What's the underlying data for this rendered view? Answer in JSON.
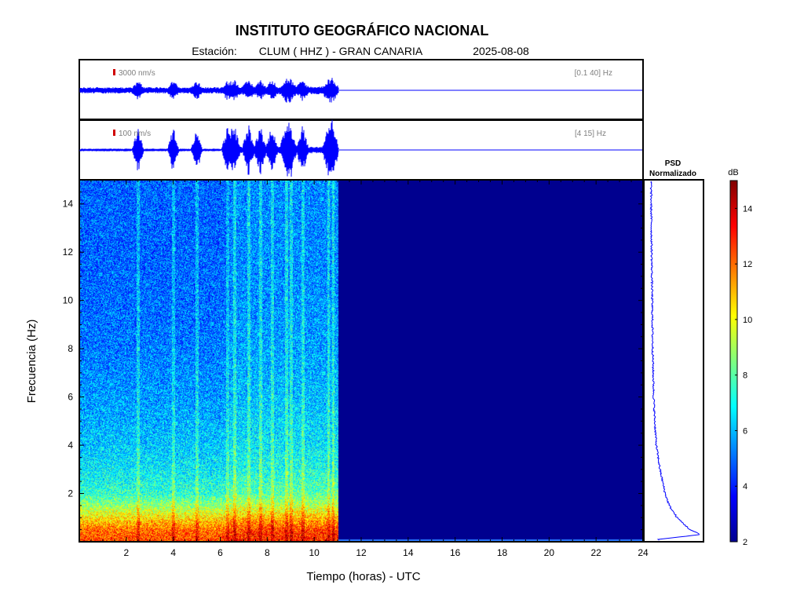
{
  "header": {
    "title": "INSTITUTO GEOGRÁFICO NACIONAL",
    "station_label": "Estación:",
    "station": "CLUM ( HHZ ) - GRAN CANARIA",
    "date": "2025-08-08"
  },
  "traces": [
    {
      "scale_label": "3000 nm/s",
      "band_label": "[0.1 40] Hz"
    },
    {
      "scale_label": "100 nm/s",
      "band_label": "[4 15] Hz"
    }
  ],
  "psd_title": [
    "PSD",
    "Normalizado"
  ],
  "colorbar": {
    "unit": "dB",
    "ticks": [
      2,
      4,
      6,
      8,
      10,
      12,
      14
    ],
    "range": [
      2,
      15
    ]
  },
  "colors": {
    "trace": "#0000ff",
    "no_data": "#00008f",
    "frame": "#000000"
  },
  "chart_data": {
    "type": "heatmap",
    "xlabel": "Tiempo (horas) - UTC",
    "ylabel": "Frecuencia  (Hz)",
    "xlim": [
      0,
      24
    ],
    "ylim": [
      0,
      15
    ],
    "xticks": [
      2,
      4,
      6,
      8,
      10,
      12,
      14,
      16,
      18,
      20,
      22,
      24
    ],
    "yticks": [
      2,
      4,
      6,
      8,
      10,
      12,
      14
    ],
    "data_end_hour": 11,
    "bursts_hours": [
      2.5,
      4.0,
      5.0,
      6.3,
      6.6,
      7.2,
      7.7,
      8.2,
      8.8,
      9.0,
      9.5,
      10.6,
      10.8
    ],
    "psd_profile": {
      "frequency_hz": [
        0.1,
        0.3,
        0.5,
        1.0,
        1.5,
        2.0,
        3.0,
        4.0,
        5.0,
        6.0,
        8.0,
        10.0,
        12.0,
        14.0,
        15.0
      ],
      "normalized": [
        0.2,
        1.0,
        0.8,
        0.55,
        0.4,
        0.32,
        0.22,
        0.15,
        0.12,
        0.1,
        0.08,
        0.07,
        0.06,
        0.05,
        0.05
      ]
    },
    "spectrogram_profile": {
      "frequency_hz": [
        0,
        0.5,
        1.0,
        1.5,
        2.0,
        3.0,
        4.0,
        6.0,
        8.0,
        10.0,
        12.0,
        15.0
      ],
      "level_db": [
        12.5,
        12.0,
        10.5,
        8.8,
        7.5,
        6.7,
        6.2,
        5.6,
        5.2,
        5.0,
        4.9,
        4.9
      ]
    }
  }
}
